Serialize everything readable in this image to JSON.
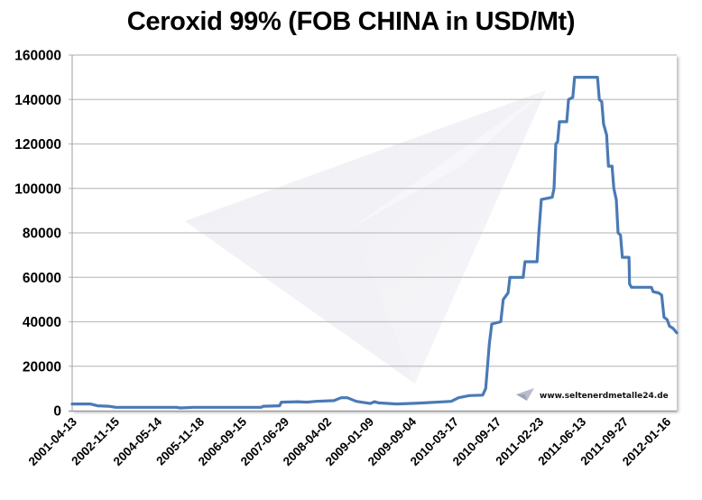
{
  "chart_data": {
    "type": "line",
    "title": "Ceroxid 99% (FOB CHINA in USD/Mt)",
    "xlabel": "",
    "ylabel": "",
    "ylim": [
      0,
      160000
    ],
    "y_ticks": [
      0,
      20000,
      40000,
      60000,
      80000,
      100000,
      120000,
      140000,
      160000
    ],
    "y_tick_labels": [
      "0",
      "20000",
      "40000",
      "60000",
      "80000",
      "100000",
      "120000",
      "140000",
      "160000"
    ],
    "x_tick_labels": [
      "2001-04-13",
      "2002-11-15",
      "2004-05-14",
      "2005-11-18",
      "2006-09-15",
      "2007-06-29",
      "2008-04-02",
      "2009-01-09",
      "2009-09-04",
      "2010-03-17",
      "2010-09-17",
      "2011-02-23",
      "2011-06-13",
      "2011-09-27",
      "2012-01-16"
    ],
    "grid": true,
    "legend": "none",
    "series": [
      {
        "name": "Ceroxid 99% (FOB CHINA in USD/Mt)",
        "color": "#4a7ab5",
        "points": [
          {
            "t": 0.0,
            "v": 3000
          },
          {
            "t": 0.03,
            "v": 3000
          },
          {
            "t": 0.042,
            "v": 2200
          },
          {
            "t": 0.06,
            "v": 2000
          },
          {
            "t": 0.072,
            "v": 1500
          },
          {
            "t": 0.172,
            "v": 1500
          },
          {
            "t": 0.179,
            "v": 1200
          },
          {
            "t": 0.201,
            "v": 1500
          },
          {
            "t": 0.313,
            "v": 1500
          },
          {
            "t": 0.316,
            "v": 2000
          },
          {
            "t": 0.343,
            "v": 2200
          },
          {
            "t": 0.346,
            "v": 3800
          },
          {
            "t": 0.373,
            "v": 4000
          },
          {
            "t": 0.388,
            "v": 3800
          },
          {
            "t": 0.403,
            "v": 4200
          },
          {
            "t": 0.433,
            "v": 4500
          },
          {
            "t": 0.445,
            "v": 5800
          },
          {
            "t": 0.455,
            "v": 5800
          },
          {
            "t": 0.47,
            "v": 4200
          },
          {
            "t": 0.493,
            "v": 3200
          },
          {
            "t": 0.5,
            "v": 4000
          },
          {
            "t": 0.507,
            "v": 3500
          },
          {
            "t": 0.537,
            "v": 3000
          },
          {
            "t": 0.575,
            "v": 3400
          },
          {
            "t": 0.627,
            "v": 4200
          },
          {
            "t": 0.639,
            "v": 5800
          },
          {
            "t": 0.657,
            "v": 6800
          },
          {
            "t": 0.679,
            "v": 7000
          },
          {
            "t": 0.684,
            "v": 10000
          },
          {
            "t": 0.687,
            "v": 20000
          },
          {
            "t": 0.69,
            "v": 30000
          },
          {
            "t": 0.694,
            "v": 39000
          },
          {
            "t": 0.709,
            "v": 40000
          },
          {
            "t": 0.713,
            "v": 50000
          },
          {
            "t": 0.721,
            "v": 53000
          },
          {
            "t": 0.724,
            "v": 60000
          },
          {
            "t": 0.746,
            "v": 60000
          },
          {
            "t": 0.749,
            "v": 67000
          },
          {
            "t": 0.769,
            "v": 67000
          },
          {
            "t": 0.772,
            "v": 80000
          },
          {
            "t": 0.776,
            "v": 95000
          },
          {
            "t": 0.794,
            "v": 96000
          },
          {
            "t": 0.797,
            "v": 100000
          },
          {
            "t": 0.8,
            "v": 120000
          },
          {
            "t": 0.803,
            "v": 121000
          },
          {
            "t": 0.806,
            "v": 130000
          },
          {
            "t": 0.818,
            "v": 130000
          },
          {
            "t": 0.821,
            "v": 140000
          },
          {
            "t": 0.828,
            "v": 141000
          },
          {
            "t": 0.831,
            "v": 150000
          },
          {
            "t": 0.869,
            "v": 150000
          },
          {
            "t": 0.872,
            "v": 140000
          },
          {
            "t": 0.876,
            "v": 139000
          },
          {
            "t": 0.879,
            "v": 129000
          },
          {
            "t": 0.884,
            "v": 124000
          },
          {
            "t": 0.887,
            "v": 110000
          },
          {
            "t": 0.893,
            "v": 110000
          },
          {
            "t": 0.896,
            "v": 100000
          },
          {
            "t": 0.9,
            "v": 95000
          },
          {
            "t": 0.903,
            "v": 80000
          },
          {
            "t": 0.907,
            "v": 79000
          },
          {
            "t": 0.91,
            "v": 69000
          },
          {
            "t": 0.921,
            "v": 69000
          },
          {
            "t": 0.922,
            "v": 57000
          },
          {
            "t": 0.925,
            "v": 55500
          },
          {
            "t": 0.958,
            "v": 55500
          },
          {
            "t": 0.961,
            "v": 53500
          },
          {
            "t": 0.97,
            "v": 53000
          },
          {
            "t": 0.975,
            "v": 52000
          },
          {
            "t": 0.979,
            "v": 42000
          },
          {
            "t": 0.984,
            "v": 41000
          },
          {
            "t": 0.988,
            "v": 38000
          },
          {
            "t": 0.994,
            "v": 37000
          },
          {
            "t": 1.0,
            "v": 35000
          }
        ]
      }
    ],
    "annotations": [
      "www.seltenerdmetalle24.de"
    ]
  },
  "title": "Ceroxid 99% (FOB CHINA in USD/Mt)",
  "watermark": {
    "credit_text": "www.seltenerdmetalle24.de"
  },
  "colors": {
    "line": "#4a7ab5",
    "grid": "#c0c0c0",
    "axis": "#a0a0a0"
  }
}
